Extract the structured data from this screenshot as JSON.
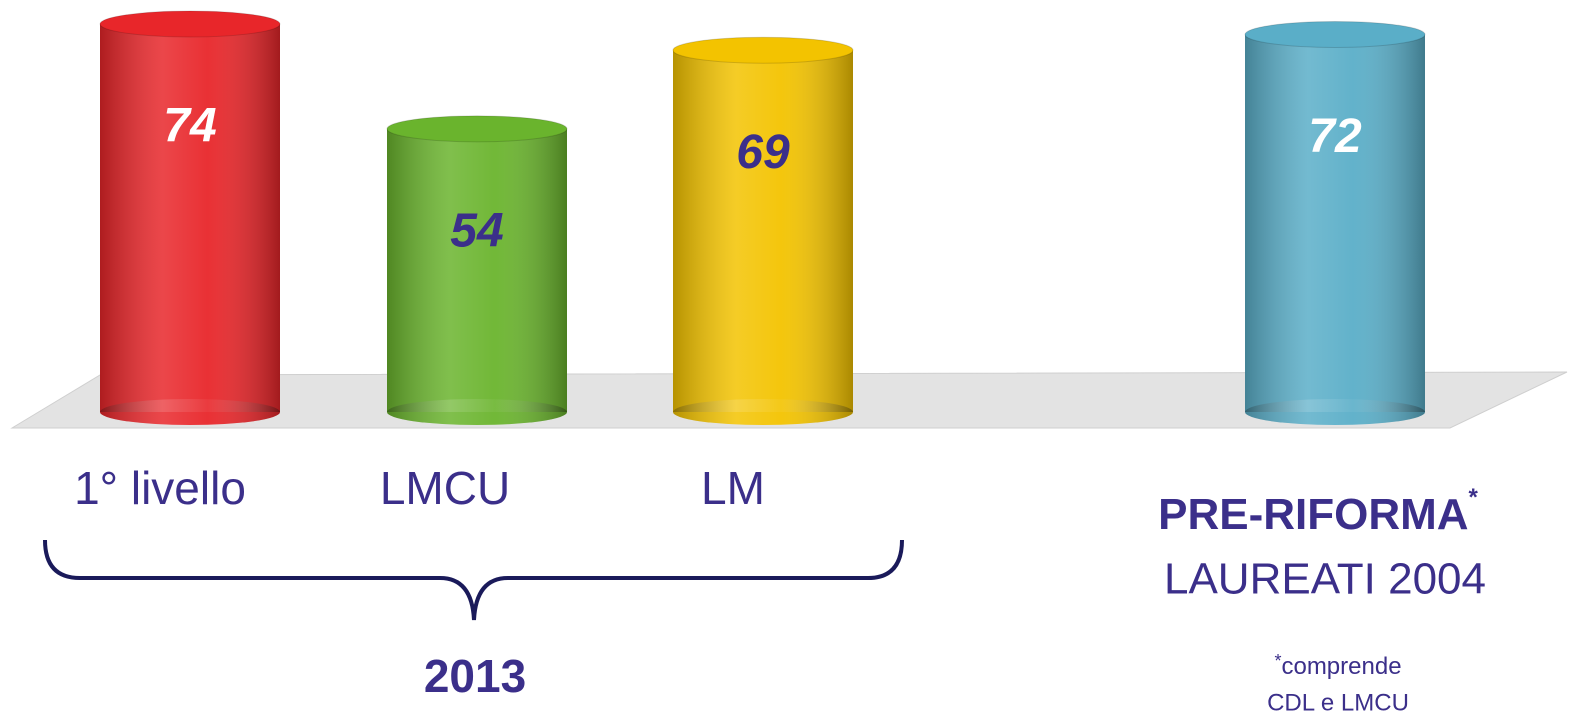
{
  "chart_data": {
    "type": "bar",
    "categories": [
      "1° livello",
      "LMCU",
      "LM",
      "PRE-RIFORMA"
    ],
    "values": [
      74,
      54,
      69,
      72
    ],
    "colors": [
      "#e8262a",
      "#6ab42d",
      "#f3c300",
      "#5aaec8"
    ],
    "value_label_colors": [
      "#ffffff",
      "#3b2f8a",
      "#3b2f8a",
      "#ffffff"
    ],
    "annotations": {
      "group_label": "2013",
      "category_marker": "*",
      "category_sublabel": "LAUREATI 2004",
      "footnote_marker": "*",
      "footnote": [
        "comprende",
        "CDL e LMCU"
      ]
    }
  }
}
